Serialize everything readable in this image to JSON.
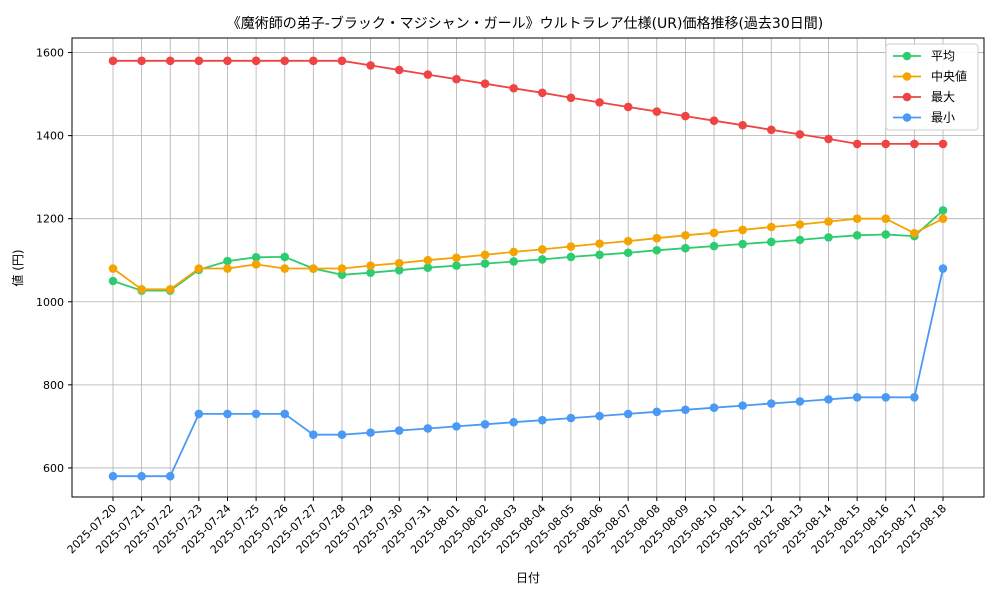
{
  "chart_data": {
    "type": "line",
    "title": "《魔術師の弟子-ブラック・マジシャン・ガール》ウルトラレア仕様(UR)価格推移(過去30日間)",
    "xlabel": "日付",
    "ylabel": "値 (円)",
    "ylim": [
      530,
      1635
    ],
    "yticks": [
      600,
      800,
      1000,
      1200,
      1400,
      1600
    ],
    "grid": true,
    "legend_position": "top-right",
    "categories": [
      "2025-07-20",
      "2025-07-21",
      "2025-07-22",
      "2025-07-23",
      "2025-07-24",
      "2025-07-25",
      "2025-07-26",
      "2025-07-27",
      "2025-07-28",
      "2025-07-29",
      "2025-07-30",
      "2025-07-31",
      "2025-08-01",
      "2025-08-02",
      "2025-08-03",
      "2025-08-04",
      "2025-08-05",
      "2025-08-06",
      "2025-08-07",
      "2025-08-08",
      "2025-08-09",
      "2025-08-10",
      "2025-08-11",
      "2025-08-12",
      "2025-08-13",
      "2025-08-14",
      "2025-08-15",
      "2025-08-16",
      "2025-08-17",
      "2025-08-18"
    ],
    "series": [
      {
        "name": "平均",
        "color": "#2ecc71",
        "values": [
          1050,
          1027,
          1027,
          1077,
          1098,
          1107,
          1108,
          1080,
          1065,
          1070,
          1076,
          1082,
          1087,
          1092,
          1097,
          1102,
          1108,
          1113,
          1118,
          1124,
          1129,
          1134,
          1139,
          1144,
          1149,
          1155,
          1160,
          1162,
          1158,
          1220
        ]
      },
      {
        "name": "中央値",
        "color": "#f5a300",
        "values": [
          1080,
          1030,
          1030,
          1080,
          1080,
          1090,
          1080,
          1080,
          1080,
          1087,
          1093,
          1100,
          1106,
          1113,
          1120,
          1126,
          1133,
          1140,
          1146,
          1153,
          1160,
          1166,
          1173,
          1180,
          1186,
          1193,
          1200,
          1200,
          1165,
          1200
        ]
      },
      {
        "name": "最大",
        "color": "#ef4444",
        "values": [
          1580,
          1580,
          1580,
          1580,
          1580,
          1580,
          1580,
          1580,
          1580,
          1569,
          1558,
          1547,
          1536,
          1525,
          1514,
          1503,
          1491,
          1480,
          1469,
          1458,
          1447,
          1436,
          1425,
          1414,
          1403,
          1392,
          1380,
          1380,
          1380,
          1380
        ]
      },
      {
        "name": "最小",
        "color": "#4a9af5",
        "values": [
          580,
          580,
          580,
          730,
          730,
          730,
          730,
          680,
          680,
          685,
          690,
          695,
          700,
          705,
          710,
          715,
          720,
          725,
          730,
          735,
          740,
          745,
          750,
          755,
          760,
          765,
          770,
          770,
          770,
          1080
        ]
      }
    ]
  }
}
